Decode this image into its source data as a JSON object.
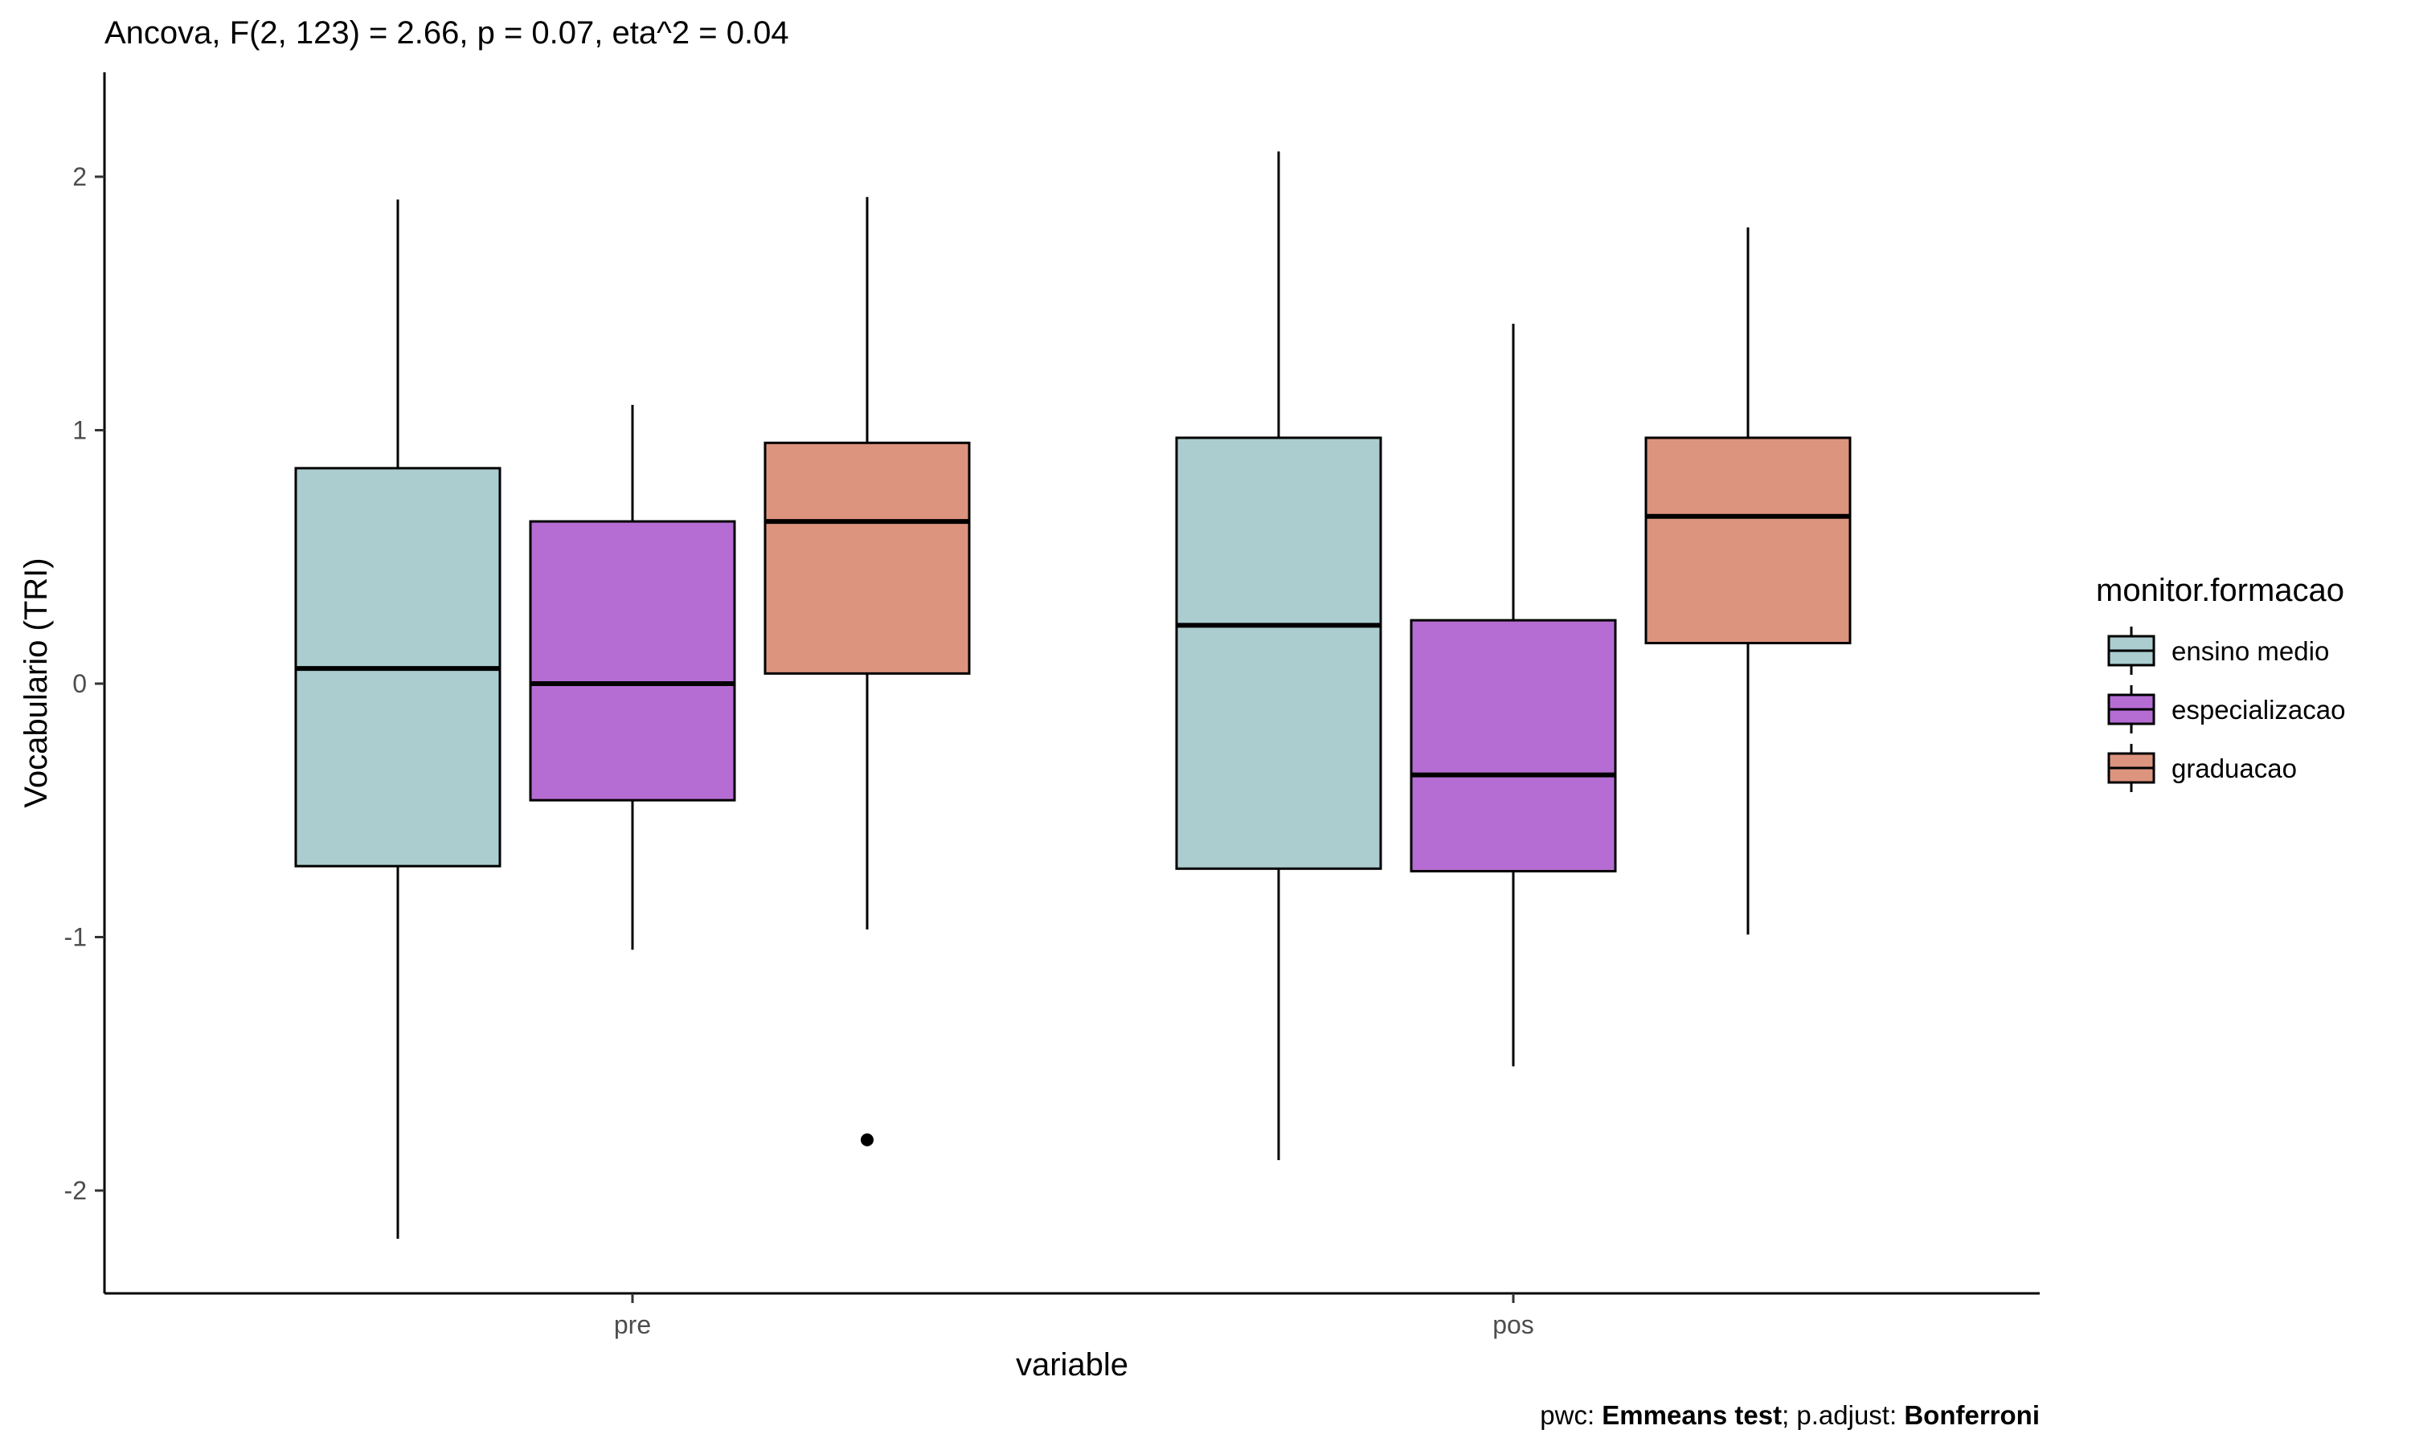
{
  "chart_data": {
    "type": "boxplot",
    "title": "Ancova, F(2, 123) = 2.66, p = 0.07, eta^2 = 0.04",
    "xlabel": "variable",
    "ylabel": "Vocabulario (TRI)",
    "ylim": [
      -2.4,
      2.4
    ],
    "yticks": [
      -2,
      -1,
      0,
      1,
      2
    ],
    "ytick_labels": [
      "-2",
      "-1",
      "0",
      "1",
      "2"
    ],
    "categories": [
      "pre",
      "pos"
    ],
    "grid": false,
    "legend": {
      "title": "monitor.formacao",
      "position": "right"
    },
    "caption": {
      "prefix": "pwc: ",
      "method": "Emmeans test",
      "middle": "; p.adjust: ",
      "adjust": "Bonferroni"
    },
    "series": [
      {
        "name": "ensino medio",
        "color": "#abcdd0",
        "boxes": [
          {
            "category": "pre",
            "min": -2.19,
            "q1": -0.72,
            "median": 0.06,
            "q3": 0.85,
            "max": 1.91,
            "outliers": []
          },
          {
            "category": "pos",
            "min": -1.88,
            "q1": -0.73,
            "median": 0.23,
            "q3": 0.97,
            "max": 2.1,
            "outliers": []
          }
        ]
      },
      {
        "name": "especializacao",
        "color": "#b66dd3",
        "boxes": [
          {
            "category": "pre",
            "min": -1.05,
            "q1": -0.46,
            "median": 0.0,
            "q3": 0.64,
            "max": 1.1,
            "outliers": []
          },
          {
            "category": "pos",
            "min": -1.51,
            "q1": -0.74,
            "median": -0.36,
            "q3": 0.25,
            "max": 1.42,
            "outliers": []
          }
        ]
      },
      {
        "name": "graduacao",
        "color": "#dc947e",
        "boxes": [
          {
            "category": "pre",
            "min": -0.97,
            "q1": 0.04,
            "median": 0.64,
            "q3": 0.95,
            "max": 1.92,
            "outliers": [
              -1.8
            ]
          },
          {
            "category": "pos",
            "min": -0.99,
            "q1": 0.16,
            "median": 0.66,
            "q3": 0.97,
            "max": 1.8,
            "outliers": []
          }
        ]
      }
    ]
  }
}
